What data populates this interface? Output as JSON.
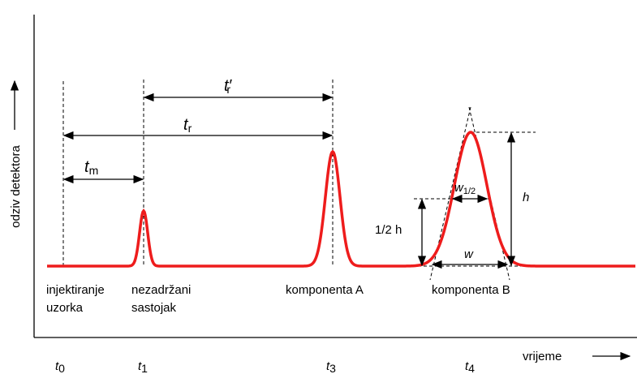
{
  "axes": {
    "y_label": "odziv detektora",
    "x_label": "vrijeme"
  },
  "time_marks": [
    {
      "base": "t",
      "sub": "0"
    },
    {
      "base": "t",
      "sub": "1"
    },
    {
      "base": "t",
      "sub": "3"
    },
    {
      "base": "t",
      "sub": "4"
    }
  ],
  "peak_labels": {
    "injection": [
      "injektiranje",
      "uzorka"
    ],
    "unretained": [
      "nezadržani",
      "sastojak"
    ],
    "component_a": "komponenta A",
    "component_b": "komponenta B"
  },
  "intervals": {
    "tm": {
      "base": "t",
      "sub": "m"
    },
    "tr": {
      "base": "t",
      "sub": "r"
    },
    "tr_prime": {
      "base": "t′",
      "sub": "r"
    }
  },
  "peak_measures": {
    "w_half": {
      "base": "w",
      "sub": "1/2"
    },
    "w": "w",
    "h": "h",
    "half_h": "1/2 h"
  }
}
